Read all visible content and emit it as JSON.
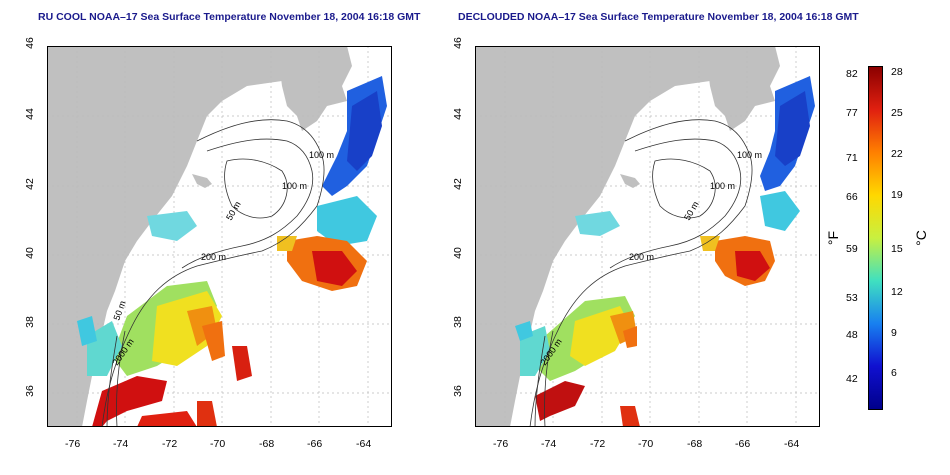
{
  "left_map": {
    "title": "RU COOL NOAA–17 Sea Surface Temperature November 18, 2004 16:18 GMT",
    "contour_labels": [
      "100 m",
      "100 m",
      "50 m",
      "200 m",
      "50 m",
      "2000 m"
    ]
  },
  "right_map": {
    "title": "DECLOUDED NOAA–17 Sea Surface Temperature November 18, 2004 16:18 GMT",
    "contour_labels": [
      "100 m",
      "100 m",
      "50 m",
      "200 m",
      "2000 m"
    ]
  },
  "axes": {
    "x_ticks": [
      "-76",
      "-74",
      "-72",
      "-70",
      "-68",
      "-66",
      "-64"
    ],
    "y_ticks": [
      "46",
      "44",
      "42",
      "40",
      "38",
      "36"
    ]
  },
  "colorbar": {
    "fahrenheit_ticks": [
      "82",
      "77",
      "71",
      "66",
      "59",
      "53",
      "48",
      "42"
    ],
    "celsius_ticks": [
      "28",
      "25",
      "22",
      "19",
      "15",
      "12",
      "9",
      "6"
    ],
    "fahrenheit_unit": "°F",
    "celsius_unit": "°C",
    "gradient_colors": [
      "#8b0000",
      "#e02010",
      "#ff8000",
      "#ffd800",
      "#c8f040",
      "#40e0c0",
      "#1880f0",
      "#1010d0",
      "#00008b"
    ]
  },
  "colors": {
    "land": "#c0c0c0",
    "ocean": "#ffffff",
    "title": "#1a1a8c",
    "warm": "#d01010",
    "orange": "#f07010",
    "yellow": "#f0e020",
    "green": "#a0e060",
    "cyan": "#40c8e0",
    "blue": "#2060e0"
  }
}
